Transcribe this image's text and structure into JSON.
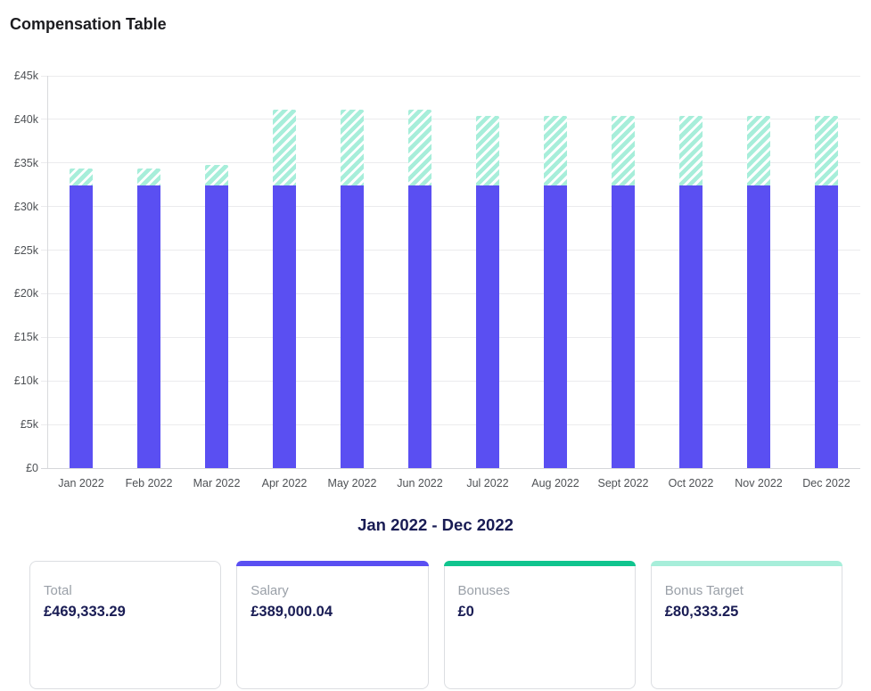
{
  "header": {
    "title": "Compensation Table"
  },
  "chart": {
    "subtitle": "Jan 2022 - Dec 2022"
  },
  "chart_data": {
    "type": "bar",
    "stacked": true,
    "title": "Compensation Table",
    "subtitle": "Jan 2022 - Dec 2022",
    "categories": [
      "Jan 2022",
      "Feb 2022",
      "Mar 2022",
      "Apr 2022",
      "May 2022",
      "Jun 2022",
      "Jul 2022",
      "Aug 2022",
      "Sept 2022",
      "Oct 2022",
      "Nov 2022",
      "Dec 2022"
    ],
    "series": [
      {
        "name": "Salary",
        "style": "solid",
        "color": "#5a4ff2",
        "values": [
          32416.67,
          32416.67,
          32416.67,
          32416.67,
          32416.67,
          32416.67,
          32416.67,
          32416.67,
          32416.67,
          32416.67,
          32416.67,
          32416.67
        ]
      },
      {
        "name": "Bonus Target",
        "style": "diagonal-hatch",
        "color": "#a7eeda",
        "values": [
          2000,
          2000,
          2333.25,
          8666.67,
          8666.67,
          8666.66,
          8000,
          8000,
          8000,
          8000,
          8000,
          8000
        ]
      }
    ],
    "ylim": [
      0,
      45000
    ],
    "y_ticks": [
      {
        "value": 0,
        "label": "£0"
      },
      {
        "value": 5000,
        "label": "£5k"
      },
      {
        "value": 10000,
        "label": "£10k"
      },
      {
        "value": 15000,
        "label": "£15k"
      },
      {
        "value": 20000,
        "label": "£20k"
      },
      {
        "value": 25000,
        "label": "£25k"
      },
      {
        "value": 30000,
        "label": "£30k"
      },
      {
        "value": 35000,
        "label": "£35k"
      },
      {
        "value": 40000,
        "label": "£40k"
      },
      {
        "value": 45000,
        "label": "£45k"
      }
    ],
    "grid": "horizontal",
    "legend": "none",
    "currency": "GBP"
  },
  "summary_cards": [
    {
      "label": "Total",
      "value": "£469,333.29",
      "accent_color": ""
    },
    {
      "label": "Salary",
      "value": "£389,000.04",
      "accent_color": "#5a4ff2"
    },
    {
      "label": "Bonuses",
      "value": "£0",
      "accent_color": "#10c48e"
    },
    {
      "label": "Bonus Target",
      "value": "£80,333.25",
      "accent_color": "#a7eeda"
    }
  ],
  "colors": {
    "salary_bar": "#5a4ff2",
    "bonus_target_hatch": "#a7eeda",
    "bonuses_accent": "#10c48e",
    "navy_text": "#191c54",
    "gridline": "#ebebed"
  }
}
